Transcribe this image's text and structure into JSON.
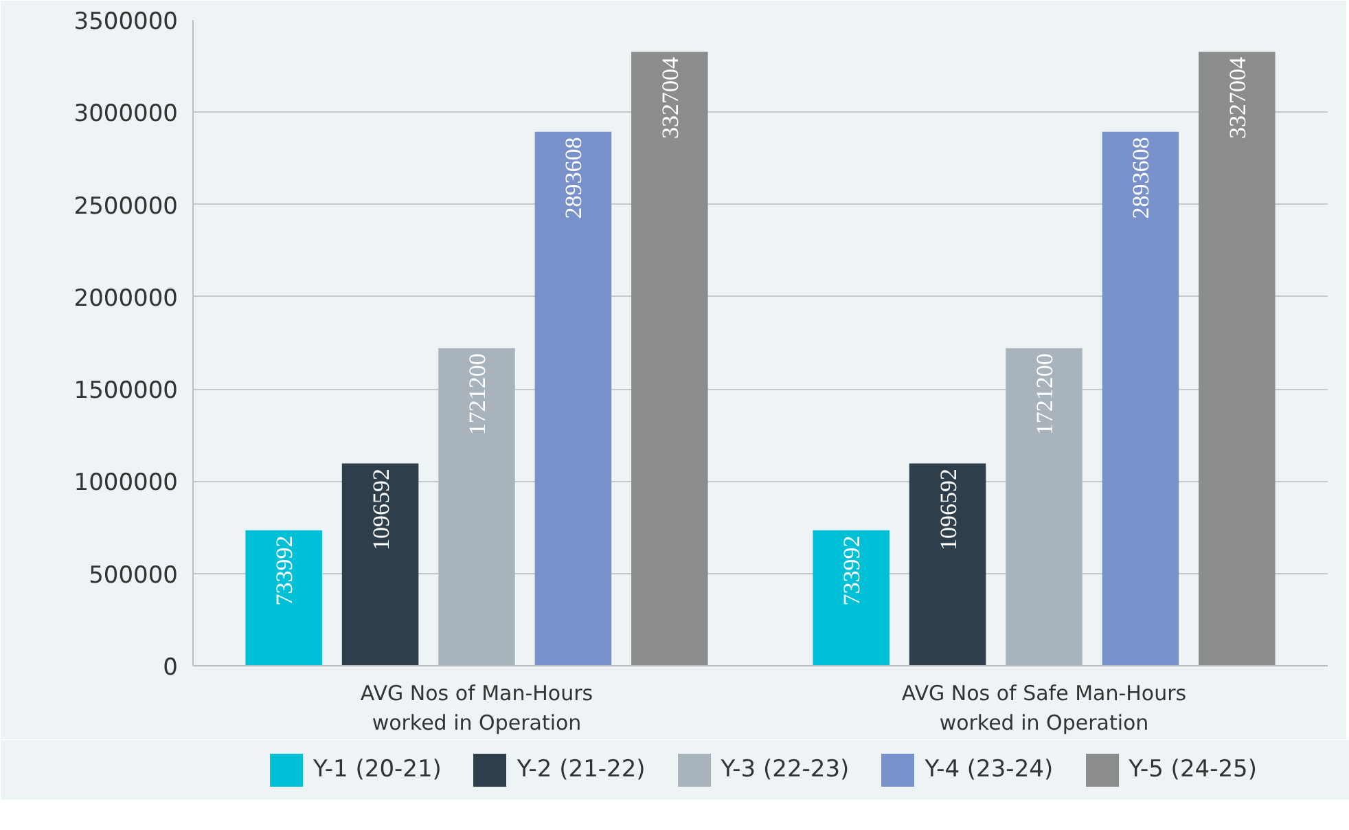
{
  "chart_data": {
    "type": "bar",
    "categories": [
      "AVG Nos of Man-Hours worked in Operation",
      "AVG Nos of Safe Man-Hours worked in Operation"
    ],
    "series": [
      {
        "name": "Y-1 (20-21)",
        "color": "#00c0d8",
        "values": [
          733992,
          733992
        ]
      },
      {
        "name": "Y-2 (21-22)",
        "color": "#2e3f4b",
        "values": [
          1096592,
          1096592
        ]
      },
      {
        "name": "Y-3 (22-23)",
        "color": "#a9b3bc",
        "values": [
          1721200,
          1721200
        ]
      },
      {
        "name": "Y-4 (23-24)",
        "color": "#7891cb",
        "values": [
          2893608,
          2893608
        ]
      },
      {
        "name": "Y-5 (24-25)",
        "color": "#8b8d8d",
        "values": [
          3327004,
          3327004
        ]
      }
    ],
    "ylim": [
      0,
      3500000
    ],
    "yticks": [
      0,
      500000,
      1000000,
      1500000,
      2000000,
      2500000,
      3000000,
      3500000
    ],
    "grid": "y",
    "legend": "bottom",
    "data_labels": true
  }
}
